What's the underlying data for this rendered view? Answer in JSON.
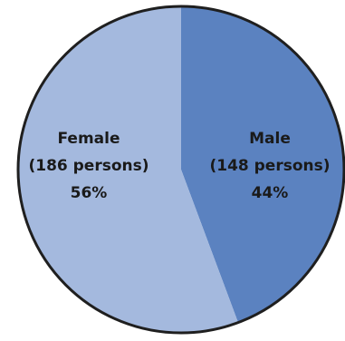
{
  "chart_data": {
    "type": "pie",
    "start_angle_deg": 0,
    "direction": "clockwise",
    "colors": {
      "edge": "#1f1f1f"
    },
    "slices": [
      {
        "name": "Male",
        "count_label": "(148 persons)",
        "percent_label": "44%",
        "value": 148,
        "color": "#5b82c0"
      },
      {
        "name": "Female",
        "count_label": "(186 persons)",
        "percent_label": "56%",
        "value": 186,
        "color": "#a4b9de"
      }
    ]
  }
}
